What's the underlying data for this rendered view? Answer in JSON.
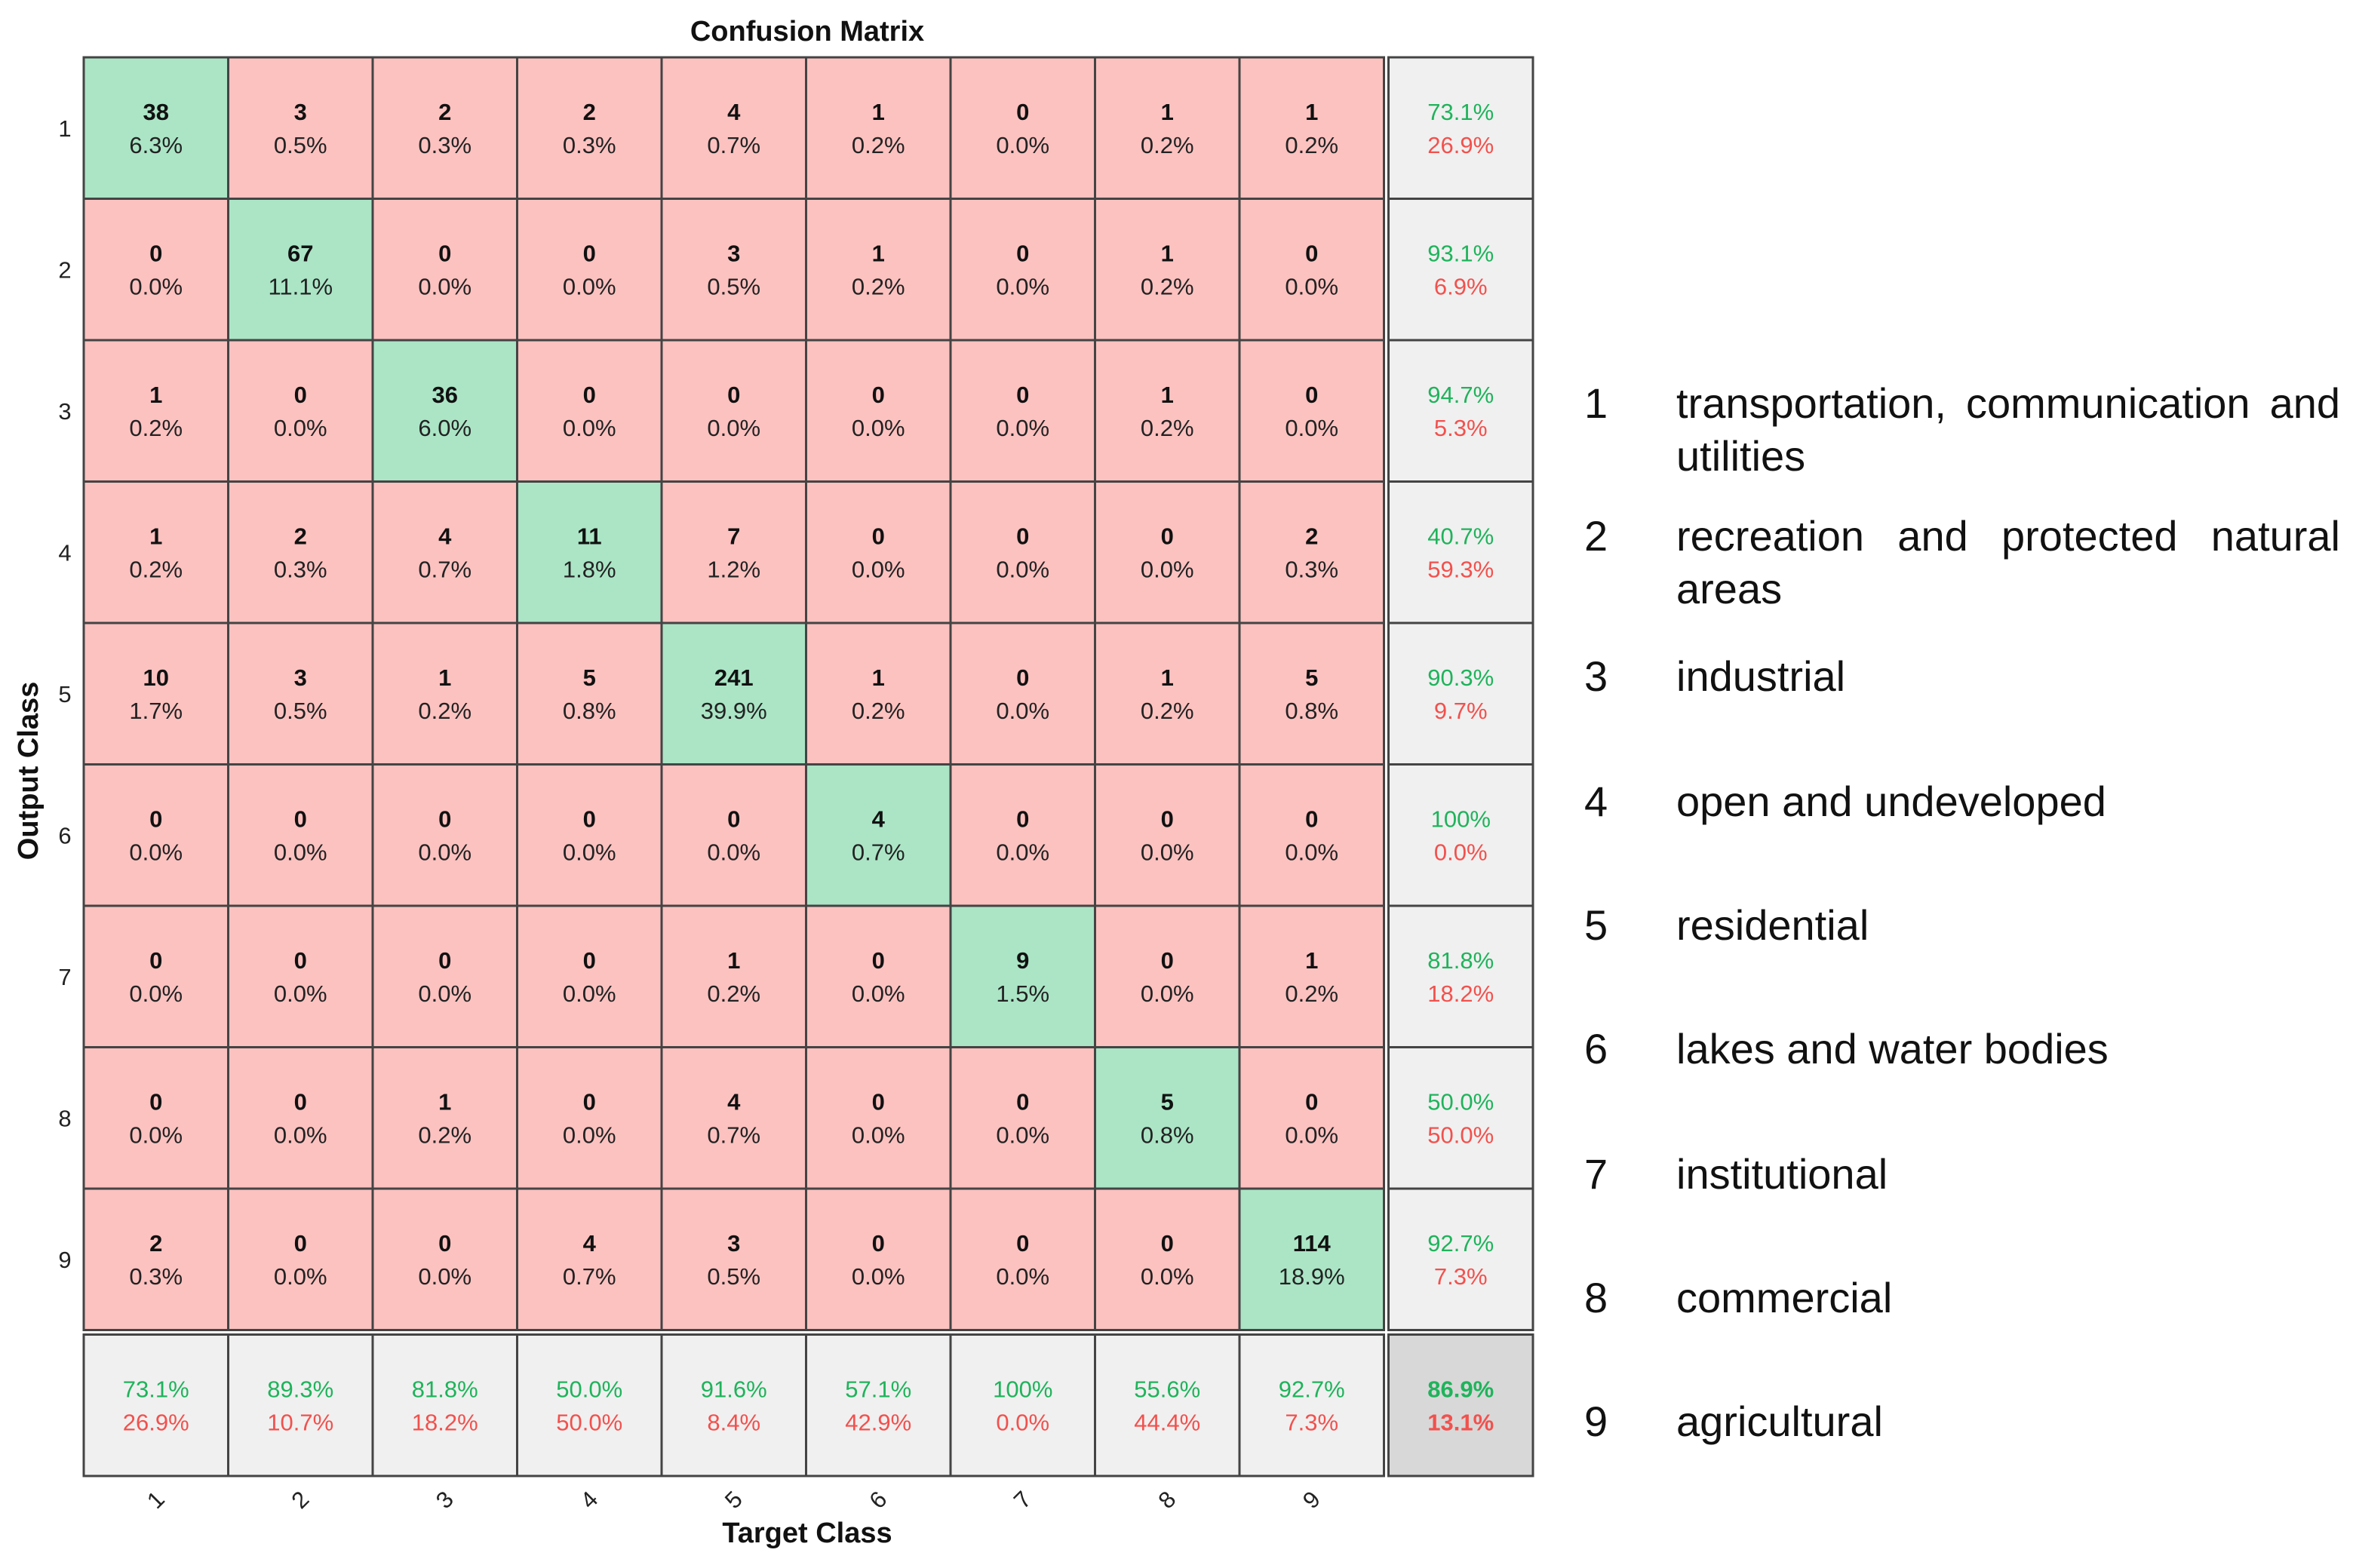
{
  "chart_data": {
    "type": "heatmap",
    "title": "Confusion Matrix",
    "xlabel": "Target Class",
    "ylabel": "Output Class",
    "classes": [
      "1",
      "2",
      "3",
      "4",
      "5",
      "6",
      "7",
      "8",
      "9"
    ],
    "counts": [
      [
        38,
        3,
        2,
        2,
        4,
        1,
        0,
        1,
        1
      ],
      [
        0,
        67,
        0,
        0,
        3,
        1,
        0,
        1,
        0
      ],
      [
        1,
        0,
        36,
        0,
        0,
        0,
        0,
        1,
        0
      ],
      [
        1,
        2,
        4,
        11,
        7,
        0,
        0,
        0,
        2
      ],
      [
        10,
        3,
        1,
        5,
        241,
        1,
        0,
        1,
        5
      ],
      [
        0,
        0,
        0,
        0,
        0,
        4,
        0,
        0,
        0
      ],
      [
        0,
        0,
        0,
        0,
        1,
        0,
        9,
        0,
        1
      ],
      [
        0,
        0,
        1,
        0,
        4,
        0,
        0,
        5,
        0
      ],
      [
        2,
        0,
        0,
        4,
        3,
        0,
        0,
        0,
        114
      ]
    ],
    "percents": [
      [
        "6.3%",
        "0.5%",
        "0.3%",
        "0.3%",
        "0.7%",
        "0.2%",
        "0.0%",
        "0.2%",
        "0.2%"
      ],
      [
        "0.0%",
        "11.1%",
        "0.0%",
        "0.0%",
        "0.5%",
        "0.2%",
        "0.0%",
        "0.2%",
        "0.0%"
      ],
      [
        "0.2%",
        "0.0%",
        "6.0%",
        "0.0%",
        "0.0%",
        "0.0%",
        "0.0%",
        "0.2%",
        "0.0%"
      ],
      [
        "0.2%",
        "0.3%",
        "0.7%",
        "1.8%",
        "1.2%",
        "0.0%",
        "0.0%",
        "0.0%",
        "0.3%"
      ],
      [
        "1.7%",
        "0.5%",
        "0.2%",
        "0.8%",
        "39.9%",
        "0.2%",
        "0.0%",
        "0.2%",
        "0.8%"
      ],
      [
        "0.0%",
        "0.0%",
        "0.0%",
        "0.0%",
        "0.0%",
        "0.7%",
        "0.0%",
        "0.0%",
        "0.0%"
      ],
      [
        "0.0%",
        "0.0%",
        "0.0%",
        "0.0%",
        "0.2%",
        "0.0%",
        "1.5%",
        "0.0%",
        "0.2%"
      ],
      [
        "0.0%",
        "0.0%",
        "0.2%",
        "0.0%",
        "0.7%",
        "0.0%",
        "0.0%",
        "0.8%",
        "0.0%"
      ],
      [
        "0.3%",
        "0.0%",
        "0.0%",
        "0.7%",
        "0.5%",
        "0.0%",
        "0.0%",
        "0.0%",
        "18.9%"
      ]
    ],
    "row_summary": [
      [
        "73.1%",
        "26.9%"
      ],
      [
        "93.1%",
        "6.9%"
      ],
      [
        "94.7%",
        "5.3%"
      ],
      [
        "40.7%",
        "59.3%"
      ],
      [
        "90.3%",
        "9.7%"
      ],
      [
        "100%",
        "0.0%"
      ],
      [
        "81.8%",
        "18.2%"
      ],
      [
        "50.0%",
        "50.0%"
      ],
      [
        "92.7%",
        "7.3%"
      ]
    ],
    "col_summary": [
      [
        "73.1%",
        "26.9%"
      ],
      [
        "89.3%",
        "10.7%"
      ],
      [
        "81.8%",
        "18.2%"
      ],
      [
        "50.0%",
        "50.0%"
      ],
      [
        "91.6%",
        "8.4%"
      ],
      [
        "57.1%",
        "42.9%"
      ],
      [
        "100%",
        "0.0%"
      ],
      [
        "55.6%",
        "44.4%"
      ],
      [
        "92.7%",
        "7.3%"
      ]
    ],
    "overall": [
      "86.9%",
      "13.1%"
    ],
    "colors": {
      "diag": "#abe5c6",
      "offdiag": "#fcc2c0",
      "summary": "#f0f0f0",
      "overall": "#d8d8d8",
      "good_text": "#1fb35b",
      "bad_text": "#f2514d",
      "border": "#444444"
    }
  },
  "legend": [
    {
      "num": "1",
      "text": "transportation, communication and utilities"
    },
    {
      "num": "2",
      "text": "recreation and protected natural areas"
    },
    {
      "num": "3",
      "text": "industrial"
    },
    {
      "num": "4",
      "text": "open and undeveloped"
    },
    {
      "num": "5",
      "text": "residential"
    },
    {
      "num": "6",
      "text": "lakes and water bodies"
    },
    {
      "num": "7",
      "text": "institutional"
    },
    {
      "num": "8",
      "text": "commercial"
    },
    {
      "num": "9",
      "text": "agricultural"
    }
  ]
}
